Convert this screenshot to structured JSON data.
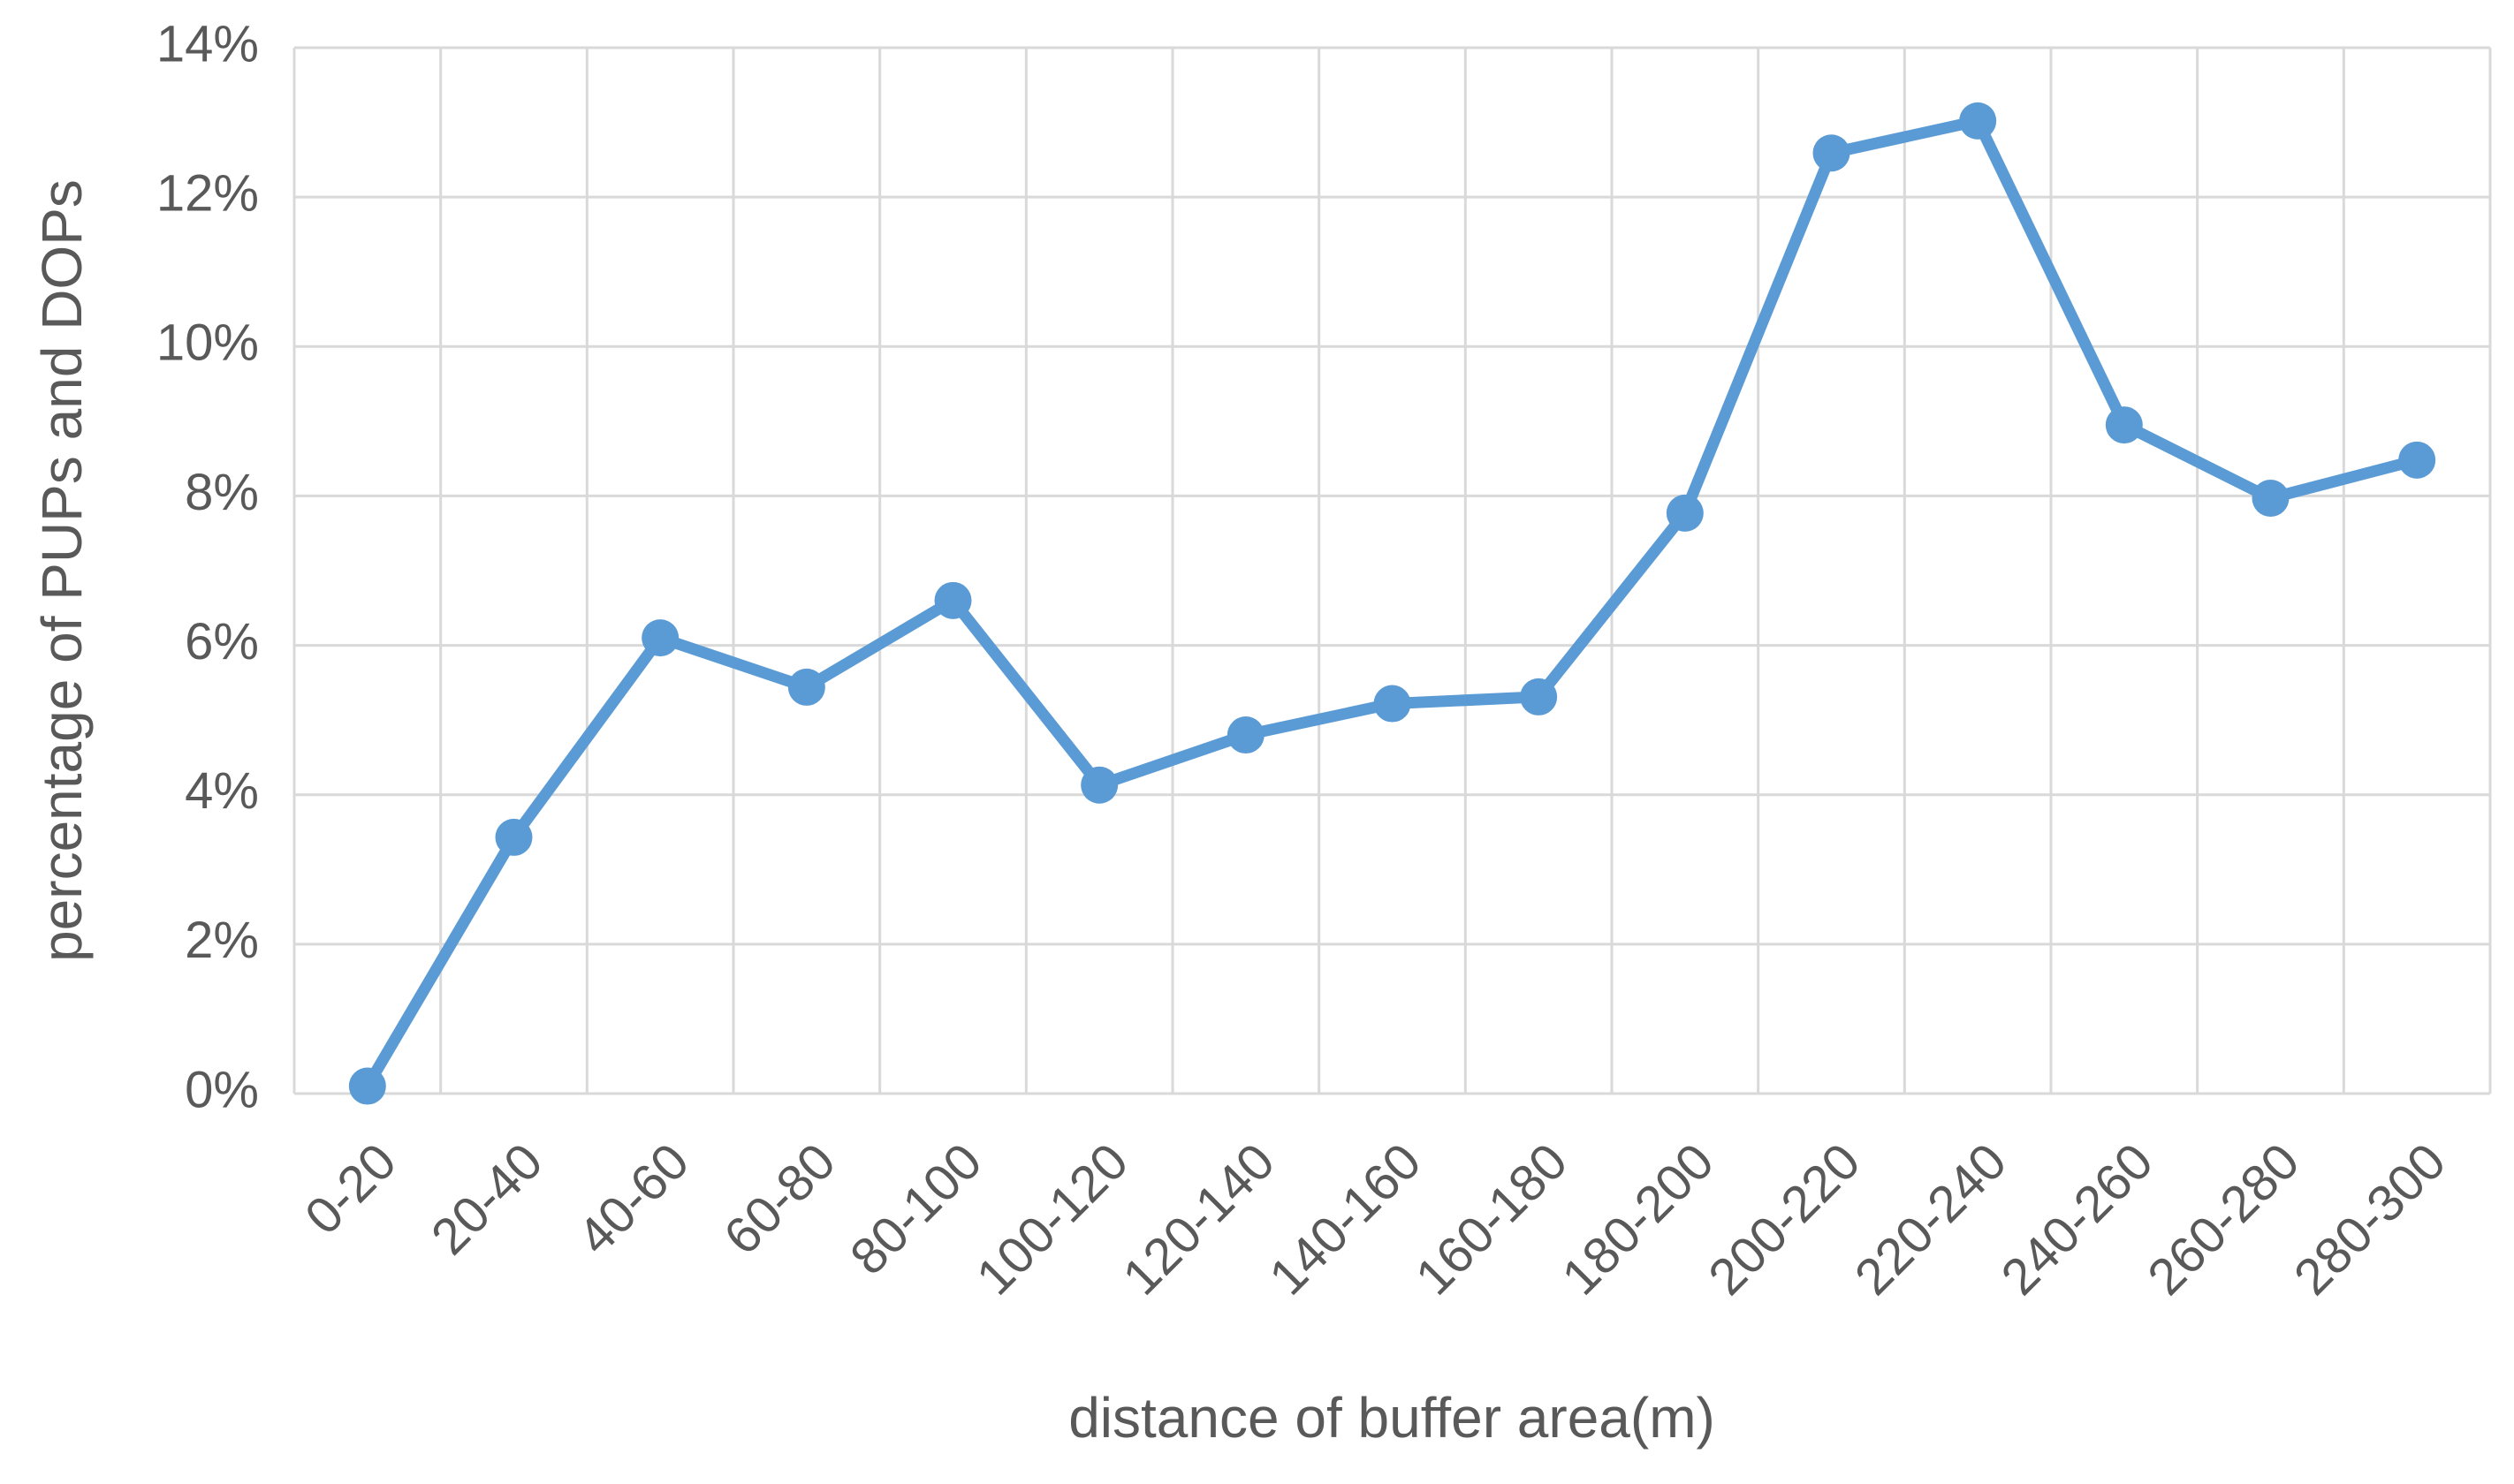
{
  "chart_data": {
    "type": "line",
    "x_label": "distance of  buffer area(m)",
    "y_label": "percentage of PUPs and DOPs",
    "categories": [
      "0-20",
      "20-40",
      "40-60",
      "60-80",
      "80-100",
      "100-120",
      "120-140",
      "140-160",
      "160-180",
      "180-200",
      "200-220",
      "220-240",
      "240-260",
      "260-280",
      "280-300"
    ],
    "values": [
      0.1,
      3.43,
      6.1,
      5.44,
      6.6,
      4.13,
      4.8,
      5.22,
      5.31,
      7.77,
      12.59,
      13.02,
      8.95,
      7.97,
      8.48
    ],
    "color": "#5b9bd5",
    "ylim": [
      0,
      14
    ],
    "yticks": [
      {
        "value": 0,
        "label": "0%"
      },
      {
        "value": 2,
        "label": "2%"
      },
      {
        "value": 4,
        "label": "4%"
      },
      {
        "value": 6,
        "label": "6%"
      },
      {
        "value": 8,
        "label": "8%"
      },
      {
        "value": 10,
        "label": "10%"
      },
      {
        "value": 12,
        "label": "12%"
      },
      {
        "value": 14,
        "label": "14%"
      }
    ],
    "grid": true
  }
}
